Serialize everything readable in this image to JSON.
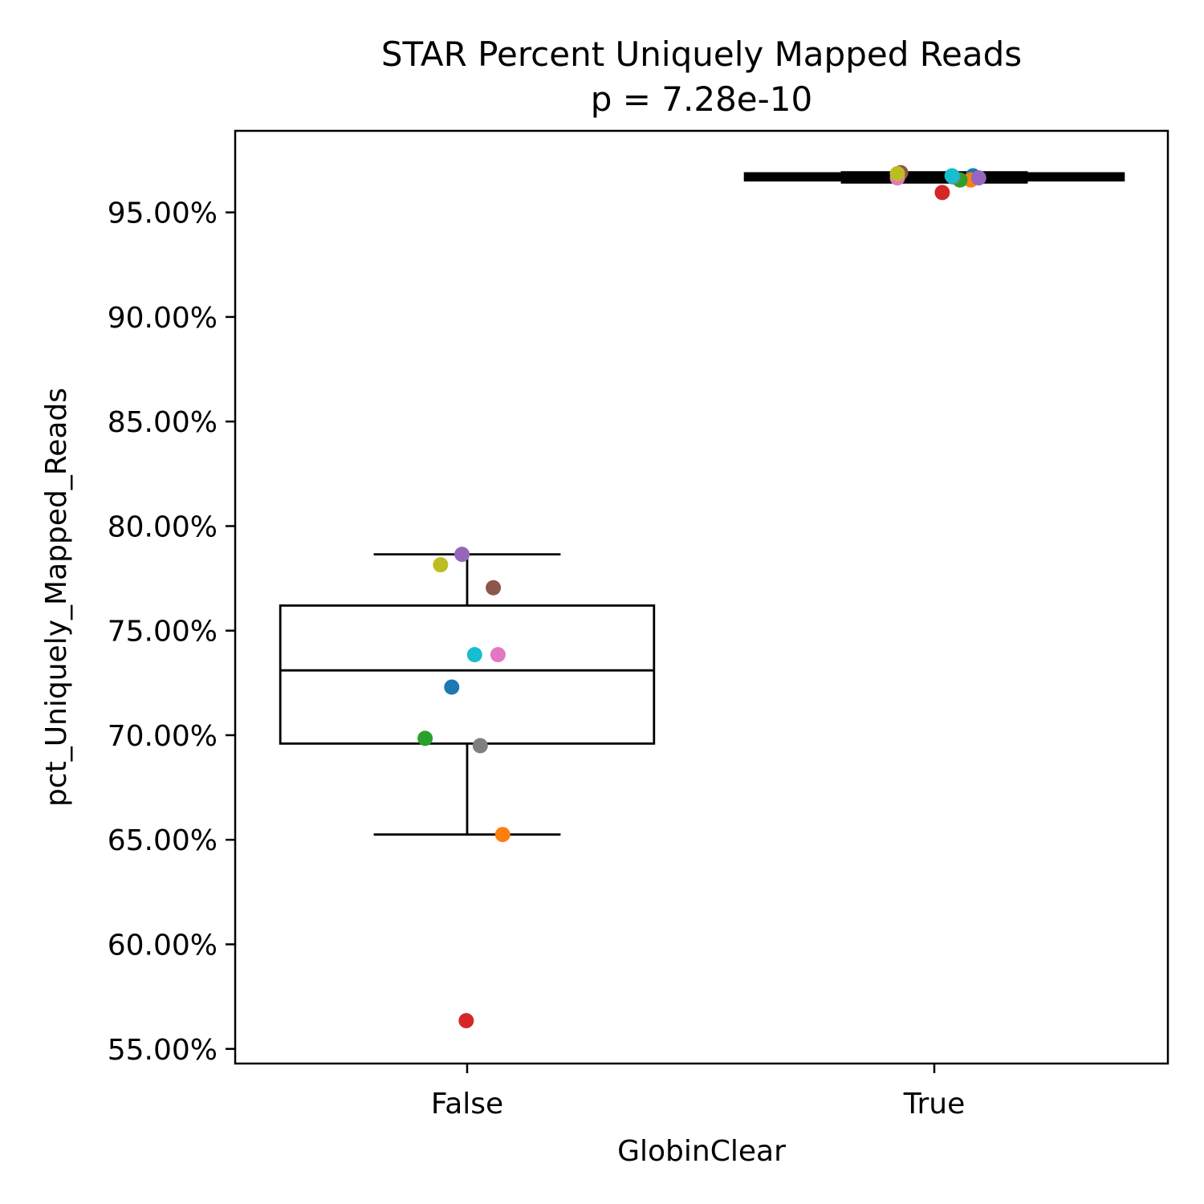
{
  "chart_data": {
    "type": "box",
    "title": "STAR Percent Uniquely Mapped Reads",
    "subtitle": "p = 7.28e-10",
    "xlabel": "GlobinClear",
    "ylabel": "pct_Uniquely_Mapped_Reads",
    "categories": [
      "False",
      "True"
    ],
    "ylim": [
      54.3,
      98.9
    ],
    "yticks": [
      55,
      60,
      65,
      70,
      75,
      80,
      85,
      90,
      95
    ],
    "ytick_labels": [
      "55.00%",
      "60.00%",
      "65.00%",
      "70.00%",
      "75.00%",
      "80.00%",
      "85.00%",
      "90.00%",
      "95.00%"
    ],
    "grid": false,
    "legend": "none",
    "boxes": [
      {
        "category": "False",
        "whisker_low": 65.25,
        "q1": 69.6,
        "median": 73.1,
        "q3": 76.2,
        "whisker_high": 78.65
      },
      {
        "category": "True",
        "whisker_low": 96.55,
        "q1": 96.65,
        "median": 96.7,
        "q3": 96.75,
        "whisker_high": 96.8
      }
    ],
    "points": [
      {
        "category": "False",
        "x_offset": -0.033,
        "y": 72.3,
        "color": "#1f77b4"
      },
      {
        "category": "False",
        "x_offset": 0.076,
        "y": 65.25,
        "color": "#ff7f0e"
      },
      {
        "category": "False",
        "x_offset": -0.09,
        "y": 69.85,
        "color": "#2ca02c"
      },
      {
        "category": "False",
        "x_offset": -0.002,
        "y": 56.35,
        "color": "#d62728"
      },
      {
        "category": "False",
        "x_offset": -0.011,
        "y": 78.65,
        "color": "#9467bd"
      },
      {
        "category": "False",
        "x_offset": 0.056,
        "y": 77.05,
        "color": "#8c564b"
      },
      {
        "category": "False",
        "x_offset": 0.066,
        "y": 73.85,
        "color": "#e377c2"
      },
      {
        "category": "False",
        "x_offset": 0.028,
        "y": 69.5,
        "color": "#7f7f7f"
      },
      {
        "category": "False",
        "x_offset": -0.057,
        "y": 78.15,
        "color": "#bcbd22"
      },
      {
        "category": "False",
        "x_offset": 0.016,
        "y": 73.85,
        "color": "#17becf"
      },
      {
        "category": "True",
        "x_offset": 0.083,
        "y": 96.75,
        "color": "#1f77b4"
      },
      {
        "category": "True",
        "x_offset": 0.078,
        "y": 96.55,
        "color": "#ff7f0e"
      },
      {
        "category": "True",
        "x_offset": 0.055,
        "y": 96.55,
        "color": "#2ca02c"
      },
      {
        "category": "True",
        "x_offset": 0.017,
        "y": 95.95,
        "color": "#d62728"
      },
      {
        "category": "True",
        "x_offset": 0.095,
        "y": 96.65,
        "color": "#9467bd"
      },
      {
        "category": "True",
        "x_offset": -0.072,
        "y": 96.9,
        "color": "#8c564b"
      },
      {
        "category": "True",
        "x_offset": -0.079,
        "y": 96.65,
        "color": "#e377c2"
      },
      {
        "category": "True",
        "x_offset": 0.04,
        "y": 96.7,
        "color": "#7f7f7f"
      },
      {
        "category": "True",
        "x_offset": -0.079,
        "y": 96.85,
        "color": "#bcbd22"
      },
      {
        "category": "True",
        "x_offset": 0.038,
        "y": 96.75,
        "color": "#17becf"
      }
    ]
  }
}
